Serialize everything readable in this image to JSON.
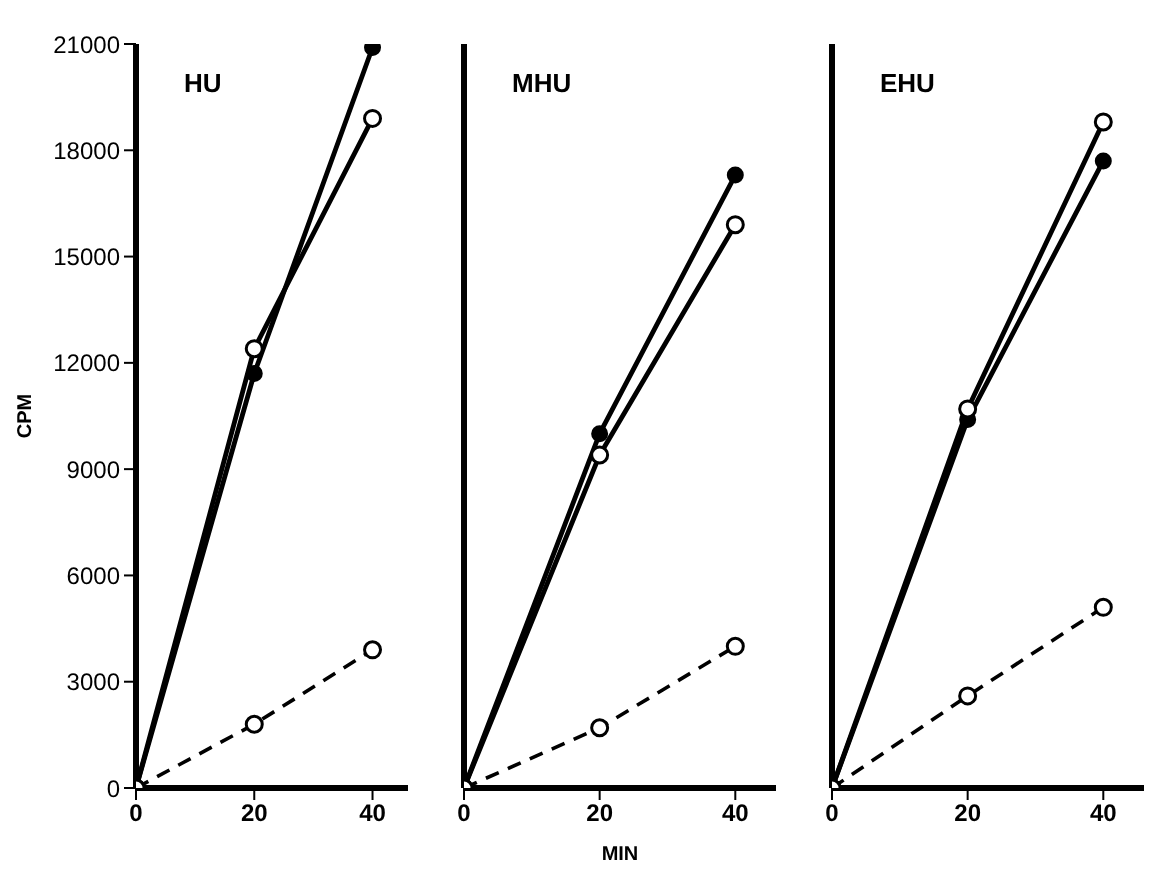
{
  "chart_data": [
    {
      "type": "line",
      "title": "HU",
      "ylabel": "CPM",
      "x": [
        0,
        20,
        40
      ],
      "xlim": [
        0,
        46
      ],
      "xticks": [
        0,
        20,
        40
      ],
      "ylim": [
        0,
        21000
      ],
      "yticks": [
        0,
        3000,
        6000,
        9000,
        12000,
        15000,
        18000,
        21000
      ],
      "grid": false,
      "legend": false,
      "series": [
        {
          "color": "#000000",
          "marker": "circle",
          "line_style": "solid",
          "values": [
            0,
            11700,
            20900
          ]
        },
        {
          "color": "#000000",
          "marker": "circle_open",
          "line_style": "solid",
          "values": [
            0,
            12400,
            18900
          ]
        },
        {
          "color": "#000000",
          "marker": "circle_open",
          "line_style": "dashed",
          "values": [
            0,
            1800,
            3900
          ]
        }
      ]
    },
    {
      "type": "line",
      "title": "MHU",
      "xlabel": "MIN",
      "x": [
        0,
        20,
        40
      ],
      "xlim": [
        0,
        46
      ],
      "xticks": [
        0,
        20,
        40
      ],
      "ylim": [
        0,
        21000
      ],
      "tick_labels": "x",
      "grid": false,
      "legend": false,
      "series": [
        {
          "color": "#000000",
          "marker": "circle",
          "line_style": "solid",
          "values": [
            0,
            10000,
            17300
          ]
        },
        {
          "color": "#000000",
          "marker": "circle_open",
          "line_style": "solid",
          "values": [
            0,
            9400,
            15900
          ]
        },
        {
          "color": "#000000",
          "marker": "circle_open",
          "line_style": "dashed",
          "values": [
            0,
            1700,
            4000
          ]
        }
      ]
    },
    {
      "type": "line",
      "title": "EHU",
      "x": [
        0,
        20,
        40
      ],
      "xlim": [
        0,
        46
      ],
      "xticks": [
        0,
        20,
        40
      ],
      "ylim": [
        0,
        21000
      ],
      "tick_labels": "x",
      "grid": false,
      "legend": false,
      "series": [
        {
          "color": "#000000",
          "marker": "circle",
          "line_style": "solid",
          "values": [
            0,
            10400,
            17700
          ]
        },
        {
          "color": "#000000",
          "marker": "circle_open",
          "line_style": "solid",
          "values": [
            0,
            10700,
            18800
          ]
        },
        {
          "color": "#000000",
          "marker": "circle_open",
          "line_style": "dashed",
          "values": [
            0,
            2600,
            5100
          ]
        }
      ]
    }
  ]
}
